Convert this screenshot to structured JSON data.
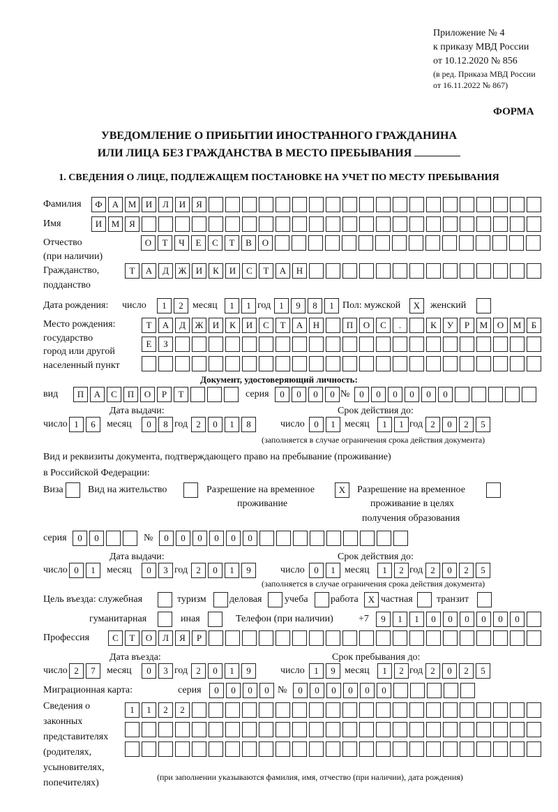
{
  "header": {
    "appendix": "Приложение № 4",
    "order": "к приказу МВД России",
    "order_date": "от 10.12.2020 № 856",
    "edition1": "(в ред. Приказа МВД России",
    "edition2": "от 16.11.2022 № 867)",
    "form": "ФОРМА",
    "title1": "УВЕДОМЛЕНИЕ О ПРИБЫТИИ ИНОСТРАННОГО ГРАЖДАНИНА",
    "title2": "ИЛИ ЛИЦА БЕЗ ГРАЖДАНСТВА В МЕСТО ПРЕБЫВАНИЯ",
    "section1": "1. СВЕДЕНИЯ О ЛИЦЕ, ПОДЛЕЖАЩЕМ ПОСТАНОВКЕ НА УЧЕТ ПО МЕСТУ ПРЕБЫВАНИЯ"
  },
  "person": {
    "surname_label": "Фамилия",
    "surname": [
      "Ф",
      "А",
      "М",
      "И",
      "Л",
      "И",
      "Я",
      "",
      "",
      "",
      "",
      "",
      "",
      "",
      "",
      "",
      "",
      "",
      "",
      "",
      "",
      "",
      "",
      "",
      "",
      "",
      ""
    ],
    "name_label": "Имя",
    "name": [
      "И",
      "М",
      "Я",
      "",
      "",
      "",
      "",
      "",
      "",
      "",
      "",
      "",
      "",
      "",
      "",
      "",
      "",
      "",
      "",
      "",
      "",
      "",
      "",
      "",
      "",
      "",
      ""
    ],
    "patronymic_label1": "Отчество",
    "patronymic_label2": "(при наличии)",
    "patronymic": [
      "О",
      "Т",
      "Ч",
      "Е",
      "С",
      "Т",
      "В",
      "О",
      "",
      "",
      "",
      "",
      "",
      "",
      "",
      "",
      "",
      "",
      "",
      "",
      "",
      "",
      "",
      ""
    ],
    "citizenship_label1": "Гражданство,",
    "citizenship_label2": "подданство",
    "citizenship": [
      "Т",
      "А",
      "Д",
      "Ж",
      "И",
      "К",
      "И",
      "С",
      "Т",
      "А",
      "Н",
      "",
      "",
      "",
      "",
      "",
      "",
      "",
      "",
      "",
      "",
      "",
      "",
      "",
      ""
    ],
    "birth": {
      "label": "Дата рождения:",
      "day_label": "число",
      "day": [
        "1",
        "2"
      ],
      "month_label": "месяц",
      "month": [
        "1",
        "1"
      ],
      "year_label": "год",
      "year": [
        "1",
        "9",
        "8",
        "1"
      ]
    },
    "sex_label": "Пол: мужской",
    "male": [
      "X"
    ],
    "female_label": "женский",
    "female": [
      ""
    ],
    "birthplace_label1": "Место рождения:",
    "birthplace_label2": "государство",
    "birthplace_label3": "город или другой",
    "birthplace_label4": "населенный пункт",
    "birthplace_row1": [
      "Т",
      "А",
      "Д",
      "Ж",
      "И",
      "К",
      "И",
      "С",
      "Т",
      "А",
      "Н",
      "",
      "П",
      "О",
      "С",
      ".",
      "",
      "К",
      "У",
      "Р",
      "М",
      "О",
      "М",
      "Б"
    ],
    "birthplace_row2": [
      "Е",
      "З",
      "",
      "",
      "",
      "",
      "",
      "",
      "",
      "",
      "",
      "",
      "",
      "",
      "",
      "",
      "",
      "",
      "",
      "",
      "",
      "",
      "",
      ""
    ],
    "birthplace_row3": [
      "",
      "",
      "",
      "",
      "",
      "",
      "",
      "",
      "",
      "",
      "",
      "",
      "",
      "",
      "",
      "",
      "",
      "",
      "",
      "",
      "",
      "",
      "",
      ""
    ]
  },
  "id_doc": {
    "heading": "Документ, удостоверяющий личность:",
    "kind_label": "вид",
    "kind": [
      "П",
      "А",
      "С",
      "П",
      "О",
      "Р",
      "Т",
      "",
      "",
      ""
    ],
    "series_label": "серия",
    "series": [
      "0",
      "0",
      "0",
      "0"
    ],
    "number_label": "№",
    "number": [
      "0",
      "0",
      "0",
      "0",
      "0",
      "0",
      "",
      "",
      "",
      "",
      ""
    ],
    "issued_label": "Дата выдачи:",
    "valid_label": "Срок действия до:",
    "issued": {
      "day": [
        "1",
        "6"
      ],
      "month": [
        "0",
        "8"
      ],
      "year": [
        "2",
        "0",
        "1",
        "8"
      ]
    },
    "valid": {
      "day": [
        "0",
        "1"
      ],
      "month": [
        "1",
        "1"
      ],
      "year": [
        "2",
        "0",
        "2",
        "5"
      ]
    },
    "note": "(заполняется в случае ограничения срока действия документа)"
  },
  "labels": {
    "day": "число",
    "month": "месяц",
    "year": "год"
  },
  "stay_doc": {
    "intro1": "Вид и реквизиты документа, подтверждающего право на пребывание (проживание)",
    "intro2": "в Российской Федерации:",
    "visa_label": "Виза",
    "visa": [
      ""
    ],
    "residence_label": "Вид на жительство",
    "residence": [
      ""
    ],
    "trp_label1": "Разрешение на временное",
    "trp_label2": "проживание",
    "trp": [
      "X"
    ],
    "trp_edu_label1": "Разрешение на временное",
    "trp_edu_label2": "проживание в целях",
    "trp_edu_label3": "получения образования",
    "trp_edu": [
      ""
    ],
    "series_label": "серия",
    "series": [
      "0",
      "0",
      "",
      ""
    ],
    "number_label": "№",
    "number": [
      "0",
      "0",
      "0",
      "0",
      "0",
      "0",
      "",
      "",
      "",
      "",
      "",
      "",
      "",
      "",
      ""
    ],
    "issued_label": "Дата выдачи:",
    "valid_label": "Срок действия до:",
    "issued": {
      "day": [
        "0",
        "1"
      ],
      "month": [
        "0",
        "3"
      ],
      "year": [
        "2",
        "0",
        "1",
        "9"
      ]
    },
    "valid": {
      "day": [
        "0",
        "1"
      ],
      "month": [
        "1",
        "2"
      ],
      "year": [
        "2",
        "0",
        "2",
        "5"
      ]
    },
    "note": "(заполняется в случае ограничения срока действия документа)"
  },
  "purpose": {
    "label": "Цель въезда: служебная",
    "official": [
      ""
    ],
    "tourism_label": "туризм",
    "tourism": [
      ""
    ],
    "business_label": "деловая",
    "business": [
      ""
    ],
    "study_label": "учеба",
    "study": [
      ""
    ],
    "work_label": "работа",
    "work": [
      "X"
    ],
    "private_label": "частная",
    "private": [
      ""
    ],
    "transit_label": "транзит",
    "transit": [
      ""
    ],
    "humanitarian_label": "гуманитарная",
    "humanitarian": [
      ""
    ],
    "other_label": "иная",
    "other": [
      ""
    ]
  },
  "phone": {
    "label": "Телефон (при наличии)",
    "prefix": "+7",
    "digits": [
      "9",
      "1",
      "1",
      "0",
      "0",
      "0",
      "0",
      "0",
      "0",
      ""
    ]
  },
  "profession": {
    "label": "Профессия",
    "value": [
      "С",
      "Т",
      "О",
      "Л",
      "Я",
      "Р",
      "",
      "",
      "",
      "",
      "",
      "",
      "",
      "",
      "",
      "",
      "",
      "",
      "",
      "",
      "",
      "",
      "",
      "",
      "",
      ""
    ]
  },
  "entry": {
    "entry_label": "Дата въезда:",
    "stay_until_label": "Срок пребывания до:",
    "entry": {
      "day": [
        "2",
        "7"
      ],
      "month": [
        "0",
        "3"
      ],
      "year": [
        "2",
        "0",
        "1",
        "9"
      ]
    },
    "until": {
      "day": [
        "1",
        "9"
      ],
      "month": [
        "1",
        "2"
      ],
      "year": [
        "2",
        "0",
        "2",
        "5"
      ]
    }
  },
  "migration_card": {
    "label": "Миграционная карта:",
    "series_label": "серия",
    "series": [
      "0",
      "0",
      "0",
      "0"
    ],
    "number_label": "№",
    "number": [
      "0",
      "0",
      "0",
      "0",
      "0",
      "0",
      "",
      "",
      "",
      "",
      ""
    ]
  },
  "representatives": {
    "label1": "Сведения о",
    "label2": "законных",
    "label3": "представителях",
    "label4": "(родителях,",
    "label5": "усыновителях,",
    "label6": "попечителях)",
    "row1": [
      "1",
      "1",
      "2",
      "2",
      "",
      "",
      "",
      "",
      "",
      "",
      "",
      "",
      "",
      "",
      "",
      "",
      "",
      "",
      "",
      "",
      "",
      "",
      "",
      "",
      ""
    ],
    "row2": [
      "",
      "",
      "",
      "",
      "",
      "",
      "",
      "",
      "",
      "",
      "",
      "",
      "",
      "",
      "",
      "",
      "",
      "",
      "",
      "",
      "",
      "",
      "",
      "",
      ""
    ],
    "row3": [
      "",
      "",
      "",
      "",
      "",
      "",
      "",
      "",
      "",
      "",
      "",
      "",
      "",
      "",
      "",
      "",
      "",
      "",
      "",
      "",
      "",
      "",
      "",
      "",
      ""
    ],
    "note": "(при заполнении указываются фамилия, имя, отчество (при наличии), дата рождения)"
  }
}
